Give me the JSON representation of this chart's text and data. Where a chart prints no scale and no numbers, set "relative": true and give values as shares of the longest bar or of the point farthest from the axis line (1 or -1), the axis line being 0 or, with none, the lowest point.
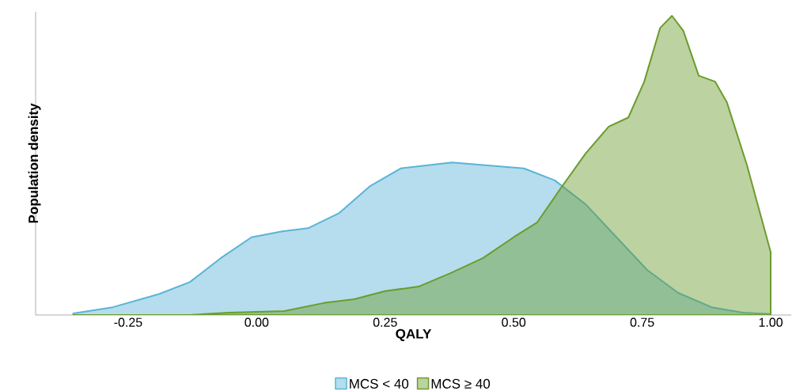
{
  "chart_data": {
    "type": "area",
    "relative": true,
    "xlabel": "QALY",
    "ylabel": "Population density",
    "xlim": [
      -0.43,
      1.04
    ],
    "xticks": [
      {
        "value": -0.25,
        "label": "-0.25"
      },
      {
        "value": 0,
        "label": "0.00"
      },
      {
        "value": 0.25,
        "label": "0.25"
      },
      {
        "value": 0.5,
        "label": "0.50"
      },
      {
        "value": 0.75,
        "label": "0.75"
      },
      {
        "value": 1,
        "label": "1.00"
      }
    ],
    "tick_labels": "x",
    "legend": "bottom",
    "series": [
      {
        "name": "MCS < 40",
        "color": "#5ab4d6",
        "x": [
          -0.357,
          -0.28,
          -0.19,
          -0.13,
          -0.07,
          -0.01,
          0.05,
          0.1,
          0.16,
          0.22,
          0.28,
          0.38,
          0.45,
          0.52,
          0.58,
          0.64,
          0.7,
          0.76,
          0.82,
          0.885,
          0.946,
          1.0
        ],
        "values": [
          0.005,
          0.026,
          0.07,
          0.11,
          0.19,
          0.26,
          0.28,
          0.29,
          0.34,
          0.43,
          0.49,
          0.51,
          0.5,
          0.49,
          0.45,
          0.37,
          0.26,
          0.15,
          0.074,
          0.026,
          0.008,
          0.003
        ]
      },
      {
        "name": "MCS ≥ 40",
        "color": "#6b9c2c",
        "x": [
          -0.357,
          -0.13,
          -0.054,
          0.054,
          0.13,
          0.19,
          0.25,
          0.315,
          0.377,
          0.44,
          0.5,
          0.546,
          0.59,
          0.64,
          0.685,
          0.723,
          0.754,
          0.785,
          0.808,
          0.83,
          0.86,
          0.892,
          0.915,
          0.954,
          1.0
        ],
        "values": [
          0,
          0,
          0.008,
          0.013,
          0.04,
          0.053,
          0.08,
          0.095,
          0.14,
          0.19,
          0.26,
          0.31,
          0.42,
          0.54,
          0.63,
          0.66,
          0.78,
          0.96,
          1.0,
          0.95,
          0.8,
          0.78,
          0.71,
          0.5,
          0.21
        ]
      }
    ]
  }
}
